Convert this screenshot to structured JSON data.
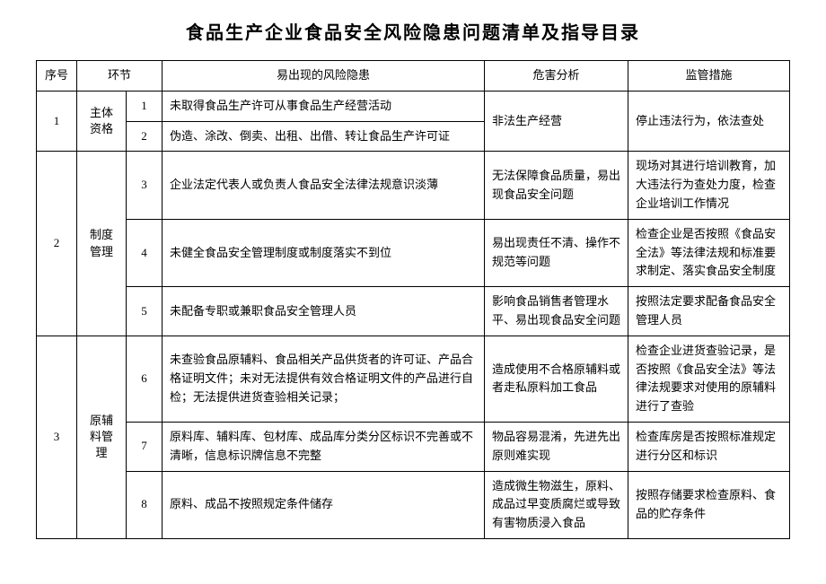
{
  "title": "食品生产企业食品安全风险隐患问题清单及指导目录",
  "columns": {
    "seq": "序号",
    "stage": "环节",
    "risk": "易出现的风险隐患",
    "harm": "危害分析",
    "action": "监管措施"
  },
  "sections": [
    {
      "seq": "1",
      "stage": "主体资格",
      "rows": [
        {
          "num": "1",
          "risk": "未取得食品生产许可从事食品生产经营活动"
        },
        {
          "num": "2",
          "risk": "伪造、涂改、倒卖、出租、出借、转让食品生产许可证"
        }
      ],
      "harm": "非法生产经营",
      "action": "停止违法行为，依法查处"
    },
    {
      "seq": "2",
      "stage": "制度管理",
      "rows": [
        {
          "num": "3",
          "risk": "企业法定代表人或负责人食品安全法律法规意识淡薄",
          "harm": "无法保障食品质量，易出现食品安全问题",
          "action": "现场对其进行培训教育，加大违法行为查处力度，检查企业培训工作情况"
        },
        {
          "num": "4",
          "risk": "未健全食品安全管理制度或制度落实不到位",
          "harm": "易出现责任不清、操作不规范等问题",
          "action": "检查企业是否按照《食品安全法》等法律法规和标准要求制定、落实食品安全制度"
        },
        {
          "num": "5",
          "risk": "未配备专职或兼职食品安全管理人员",
          "harm": "影响食品销售者管理水平、易出现食品安全问题",
          "action": "按照法定要求配备食品安全管理人员"
        }
      ]
    },
    {
      "seq": "3",
      "stage": "原辅料管理",
      "rows": [
        {
          "num": "6",
          "risk": "未查验食品原辅料、食品相关产品供货者的许可证、产品合格证明文件；未对无法提供有效合格证明文件的产品进行自检；无法提供进货查验相关记录；",
          "harm": "造成使用不合格原辅料或者走私原料加工食品",
          "action": "检查企业进货查验记录，是否按照《食品安全法》等法律法规要求对使用的原辅料进行了查验"
        },
        {
          "num": "7",
          "risk": "原料库、辅料库、包材库、成品库分类分区标识不完善或不清晰，信息标识牌信息不完整",
          "harm": "物品容易混淆，先进先出原则难实现",
          "action": "检查库房是否按照标准规定进行分区和标识"
        },
        {
          "num": "8",
          "risk": "原料、成品不按照规定条件储存",
          "harm": "造成微生物滋生，原料、成品过早变质腐烂或导致有害物质浸入食品",
          "action": "按照存储要求检查原料、食品的贮存条件"
        }
      ]
    }
  ]
}
